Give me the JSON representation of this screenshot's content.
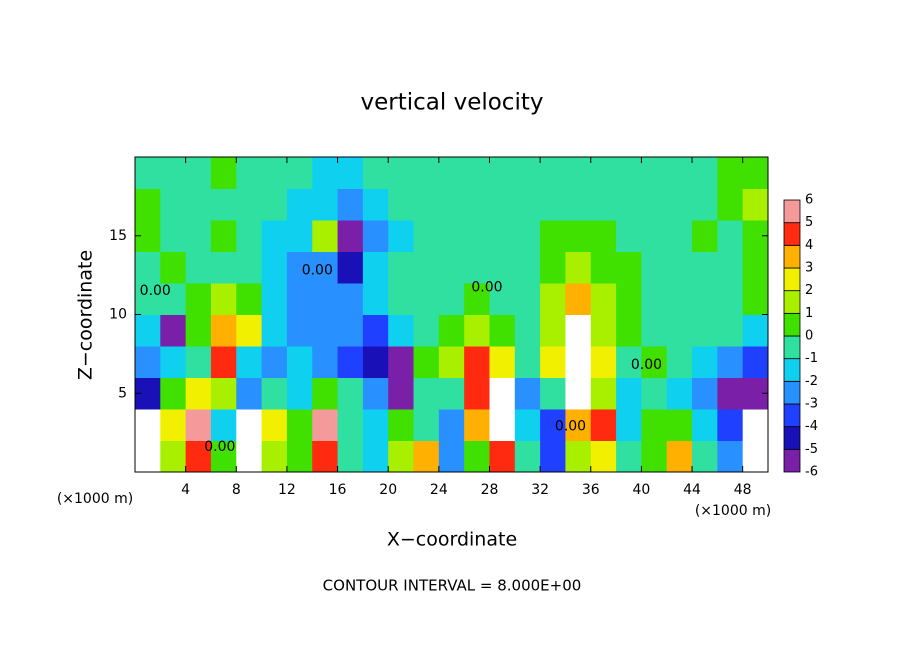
{
  "chart_data": {
    "type": "heatmap",
    "title": "vertical velocity",
    "xlabel": "X−coordinate",
    "ylabel": "Z−coordinate",
    "x_unit_left": "(×1000 m)",
    "x_unit_right": "(×1000 m)",
    "footer": "CONTOUR INTERVAL = 8.000E+00",
    "xlim": [
      0,
      50
    ],
    "ylim": [
      0,
      20
    ],
    "xticks": [
      4,
      8,
      12,
      16,
      20,
      24,
      28,
      32,
      36,
      40,
      44,
      48
    ],
    "yticks": [
      5,
      10,
      15
    ],
    "x": [
      1,
      3,
      5,
      7,
      9,
      11,
      13,
      15,
      17,
      19,
      21,
      23,
      25,
      27,
      29,
      31,
      33,
      35,
      37,
      39,
      41,
      43,
      45,
      47,
      49
    ],
    "y": [
      1,
      3,
      5,
      7,
      9,
      11,
      13,
      15,
      17,
      19
    ],
    "values": [
      [
        -8,
        2,
        5,
        1,
        7,
        2,
        1,
        5,
        0,
        -1,
        2,
        4,
        -2,
        1,
        5,
        0,
        -3,
        2,
        3,
        0,
        1,
        4,
        0,
        -2,
        -8
      ],
      [
        -7,
        3,
        6,
        -1,
        8,
        3,
        1,
        6,
        0,
        -1,
        1,
        0,
        -2,
        4,
        8,
        -1,
        -3,
        4,
        5,
        -1,
        1,
        1,
        -1,
        -3,
        -8
      ],
      [
        -4,
        1,
        3,
        2,
        -2,
        0,
        -1,
        1,
        0,
        -2,
        -6,
        0,
        0,
        5,
        8,
        -2,
        0,
        8,
        2,
        -1,
        0,
        -1,
        -2,
        -5,
        -6
      ],
      [
        -2,
        -1,
        0,
        5,
        -1,
        -2,
        -1,
        -2,
        -3,
        -4,
        -5,
        1,
        2,
        5,
        3,
        0,
        3,
        8,
        3,
        0,
        1,
        0,
        -1,
        -2,
        -3
      ],
      [
        -1,
        -5,
        1,
        4,
        3,
        -1,
        -2,
        -2,
        -2,
        -3,
        -1,
        0,
        1,
        2,
        1,
        0,
        2,
        7,
        2,
        1,
        0,
        0,
        0,
        0,
        -1
      ],
      [
        0,
        0,
        1,
        2,
        1,
        -1,
        -2,
        -2,
        -2,
        -1,
        0,
        0,
        0,
        1,
        0,
        0,
        2,
        4,
        2,
        1,
        0,
        0,
        0,
        0,
        1
      ],
      [
        0,
        1,
        0,
        0,
        0,
        -1,
        -2,
        -2,
        -4,
        -1,
        0,
        0,
        0,
        0,
        0,
        0,
        1,
        2,
        1,
        1,
        0,
        0,
        0,
        0,
        1
      ],
      [
        1,
        0,
        0,
        1,
        0,
        -1,
        -1,
        2,
        -5,
        -2,
        -1,
        0,
        0,
        0,
        0,
        0,
        1,
        1,
        1,
        0,
        0,
        0,
        1,
        0,
        1
      ],
      [
        1,
        0,
        0,
        0,
        0,
        0,
        -1,
        -1,
        -2,
        -1,
        0,
        0,
        0,
        0,
        0,
        0,
        0,
        0,
        0,
        0,
        0,
        0,
        0,
        1,
        2
      ],
      [
        0,
        0,
        0,
        1,
        0,
        0,
        0,
        -1,
        -1,
        0,
        0,
        0,
        0,
        0,
        0,
        0,
        0,
        0,
        0,
        0,
        0,
        0,
        0,
        1,
        1
      ]
    ],
    "levels": [
      -6,
      -5,
      -4,
      -3,
      -2,
      -1,
      0,
      1,
      2,
      3,
      4,
      5,
      6
    ],
    "colors": [
      "#7a1fa8",
      "#1a10b8",
      "#2040ff",
      "#2890ff",
      "#10d0f0",
      "#30e0a0",
      "#40e000",
      "#a8f000",
      "#f0f000",
      "#ffb000",
      "#ff2a10",
      "#f49a9a"
    ],
    "out_of_range_color": "#ffffff",
    "contour_labels": [
      {
        "text": "0.00",
        "x": 1.6,
        "y": 11.5
      },
      {
        "text": "0.00",
        "x": 14.4,
        "y": 12.8
      },
      {
        "text": "0.00",
        "x": 27.8,
        "y": 11.7
      },
      {
        "text": "0.00",
        "x": 6.7,
        "y": 1.6
      },
      {
        "text": "0.00",
        "x": 34.4,
        "y": 2.9
      },
      {
        "text": "0.00",
        "x": 40.4,
        "y": 6.8
      }
    ]
  }
}
